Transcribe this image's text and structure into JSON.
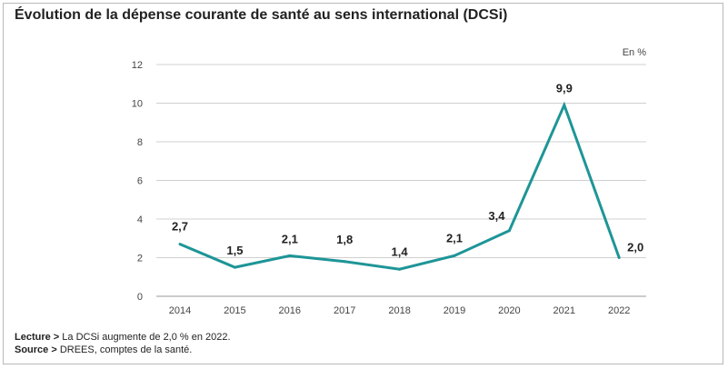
{
  "title": "Évolution de la dépense courante de santé au sens international (DCSi)",
  "chart_data": {
    "type": "line",
    "unit_label": "En %",
    "categories": [
      "2014",
      "2015",
      "2016",
      "2017",
      "2018",
      "2019",
      "2020",
      "2021",
      "2022"
    ],
    "values": [
      2.7,
      1.5,
      2.1,
      1.8,
      1.4,
      2.1,
      3.4,
      9.9,
      2.0
    ],
    "value_labels": [
      "2,7",
      "1,5",
      "2,1",
      "1,8",
      "1,4",
      "2,1",
      "3,4",
      "9,9",
      "2,0"
    ],
    "ylim": [
      0,
      12
    ],
    "yticks": [
      "0",
      "2",
      "4",
      "6",
      "8",
      "10",
      "12"
    ],
    "grid": true,
    "line_color": "#1e9597",
    "grid_color": "#d0d0d0"
  },
  "footer": {
    "reading_label": "Lecture >",
    "reading_text": " La DCSi augmente de 2,0 % en 2022.",
    "source_label": "Source >",
    "source_text": " DREES, comptes de la santé."
  }
}
